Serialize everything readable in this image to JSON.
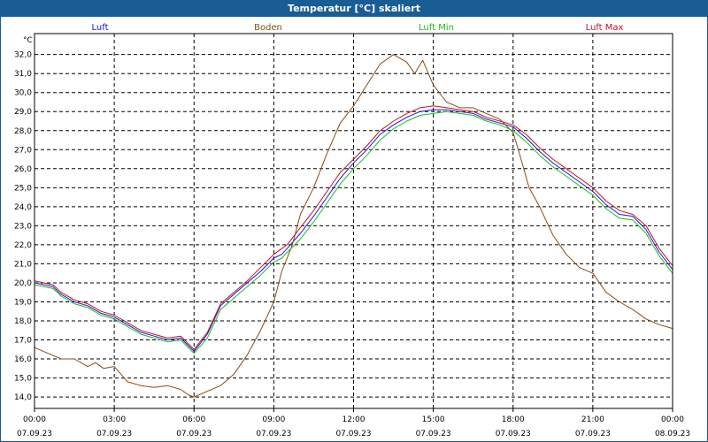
{
  "chart_data": {
    "type": "line",
    "title": "Temperatur [°C] skaliert",
    "ylabel": "°C",
    "ylim": [
      13.4,
      33.1
    ],
    "yticks": [
      "14,0",
      "15,0",
      "16,0",
      "17,0",
      "18,0",
      "19,0",
      "20,0",
      "21,0",
      "22,0",
      "23,0",
      "24,0",
      "25,0",
      "26,0",
      "27,0",
      "28,0",
      "29,0",
      "30,0",
      "31,0",
      "32,0"
    ],
    "ytick_values": [
      14,
      15,
      16,
      17,
      18,
      19,
      20,
      21,
      22,
      23,
      24,
      25,
      26,
      27,
      28,
      29,
      30,
      31,
      32
    ],
    "xlim": [
      0,
      24
    ],
    "x_ticks": [
      {
        "hour": 0,
        "time": "00:00",
        "date": "07.09.23"
      },
      {
        "hour": 3,
        "time": "03:00",
        "date": "07.09.23"
      },
      {
        "hour": 6,
        "time": "06:00",
        "date": "07.09.23"
      },
      {
        "hour": 9,
        "time": "09:00",
        "date": "07.09.23"
      },
      {
        "hour": 12,
        "time": "12:00",
        "date": "07.09.23"
      },
      {
        "hour": 15,
        "time": "15:00",
        "date": "07.09.23"
      },
      {
        "hour": 18,
        "time": "18:00",
        "date": "07.09.23"
      },
      {
        "hour": 21,
        "time": "21:00",
        "date": "07.09.23"
      },
      {
        "hour": 24,
        "time": "00:00",
        "date": "08.09.23"
      }
    ],
    "grid": true,
    "series": [
      {
        "name": "Luft",
        "color": "#1a1acc",
        "x": [
          0,
          0.7,
          1,
          1.5,
          2,
          2.5,
          3,
          3.5,
          4,
          4.5,
          5,
          5.5,
          6,
          6.5,
          7,
          7.5,
          8,
          8.5,
          9,
          9.3,
          9.5,
          10,
          10.5,
          11,
          11.5,
          12,
          12.5,
          13,
          13.5,
          14,
          14.5,
          15,
          15.5,
          16,
          16.5,
          17,
          17.5,
          18,
          18.5,
          19,
          19.5,
          20,
          20.5,
          21,
          21.5,
          22,
          22.5,
          23,
          23.5,
          24
        ],
        "values": [
          20.0,
          19.8,
          19.4,
          19.0,
          18.8,
          18.4,
          18.2,
          17.8,
          17.4,
          17.2,
          17.0,
          17.1,
          16.4,
          17.3,
          18.8,
          19.4,
          20.0,
          20.6,
          21.3,
          21.5,
          21.8,
          22.6,
          23.5,
          24.5,
          25.5,
          26.3,
          27.0,
          27.8,
          28.3,
          28.7,
          29.0,
          29.1,
          29.1,
          29.0,
          28.9,
          28.6,
          28.4,
          28.2,
          27.6,
          26.9,
          26.3,
          25.8,
          25.3,
          24.8,
          24.1,
          23.6,
          23.5,
          22.8,
          21.6,
          20.7
        ]
      },
      {
        "name": "Boden",
        "color": "#8b4a0f",
        "x": [
          0,
          0.5,
          1,
          1.5,
          2,
          2.3,
          2.6,
          3,
          3.5,
          4,
          4.5,
          5,
          5.5,
          5.8,
          6,
          6.5,
          7,
          7.5,
          8,
          8.5,
          9,
          9.3,
          9.7,
          10,
          10.5,
          11,
          11.5,
          12,
          12.5,
          13,
          13.5,
          14,
          14.3,
          14.6,
          15,
          15.5,
          16,
          16.5,
          17,
          17.5,
          18,
          18.3,
          18.6,
          19,
          19.5,
          20,
          20.5,
          21,
          21.5,
          22,
          22.5,
          23,
          23.5,
          24
        ],
        "values": [
          16.6,
          16.3,
          16.0,
          16.0,
          15.6,
          15.8,
          15.5,
          15.6,
          14.8,
          14.6,
          14.5,
          14.6,
          14.4,
          14.1,
          14.0,
          14.3,
          14.6,
          15.2,
          16.2,
          17.5,
          19.0,
          20.6,
          22.0,
          23.6,
          25.0,
          26.8,
          28.4,
          29.3,
          30.4,
          31.5,
          32.0,
          31.6,
          31.0,
          31.7,
          30.4,
          29.5,
          29.2,
          29.2,
          28.9,
          28.6,
          27.9,
          26.5,
          25.0,
          24.0,
          22.5,
          21.5,
          20.8,
          20.5,
          19.5,
          19.0,
          18.6,
          18.1,
          17.8,
          17.6
        ]
      },
      {
        "name": "Luft Min",
        "color": "#1fb81f",
        "x": [
          0,
          0.7,
          1,
          1.5,
          2,
          2.5,
          3,
          3.5,
          4,
          4.5,
          5,
          5.5,
          6,
          6.5,
          7,
          7.5,
          8,
          8.5,
          9,
          9.3,
          9.5,
          10,
          10.5,
          11,
          11.5,
          12,
          12.5,
          13,
          13.5,
          14,
          14.5,
          15,
          15.5,
          16,
          16.5,
          17,
          17.5,
          18,
          18.5,
          19,
          19.5,
          20,
          20.5,
          21,
          21.5,
          22,
          22.5,
          23,
          23.5,
          24
        ],
        "values": [
          19.9,
          19.7,
          19.3,
          18.9,
          18.7,
          18.3,
          18.1,
          17.7,
          17.3,
          17.1,
          16.9,
          17.0,
          16.3,
          17.1,
          18.6,
          19.2,
          19.8,
          20.4,
          21.1,
          21.3,
          21.6,
          22.3,
          23.2,
          24.2,
          25.2,
          26.0,
          26.7,
          27.5,
          28.1,
          28.5,
          28.8,
          28.9,
          29.0,
          28.9,
          28.8,
          28.5,
          28.3,
          28.0,
          27.4,
          26.7,
          26.1,
          25.6,
          25.1,
          24.6,
          23.9,
          23.4,
          23.3,
          22.6,
          21.4,
          20.5
        ]
      },
      {
        "name": "Luft Max",
        "color": "#c4102a",
        "x": [
          0,
          0.7,
          1,
          1.5,
          2,
          2.5,
          3,
          3.5,
          4,
          4.5,
          5,
          5.5,
          6,
          6.5,
          7,
          7.5,
          8,
          8.5,
          9,
          9.3,
          9.5,
          10,
          10.5,
          11,
          11.5,
          12,
          12.5,
          13,
          13.5,
          14,
          14.5,
          15,
          15.5,
          16,
          16.5,
          17,
          17.5,
          18,
          18.5,
          19,
          19.5,
          20,
          20.5,
          21,
          21.5,
          22,
          22.5,
          23,
          23.5,
          24
        ],
        "values": [
          20.1,
          19.9,
          19.5,
          19.1,
          18.9,
          18.5,
          18.3,
          17.9,
          17.5,
          17.3,
          17.1,
          17.2,
          16.5,
          17.4,
          18.9,
          19.5,
          20.1,
          20.8,
          21.5,
          21.8,
          22.0,
          22.9,
          23.8,
          24.8,
          25.8,
          26.5,
          27.2,
          28.0,
          28.5,
          28.9,
          29.2,
          29.3,
          29.2,
          29.1,
          29.0,
          28.7,
          28.5,
          28.3,
          27.8,
          27.1,
          26.5,
          26.0,
          25.5,
          25.0,
          24.3,
          23.8,
          23.6,
          23.0,
          21.8,
          20.9
        ]
      }
    ]
  }
}
